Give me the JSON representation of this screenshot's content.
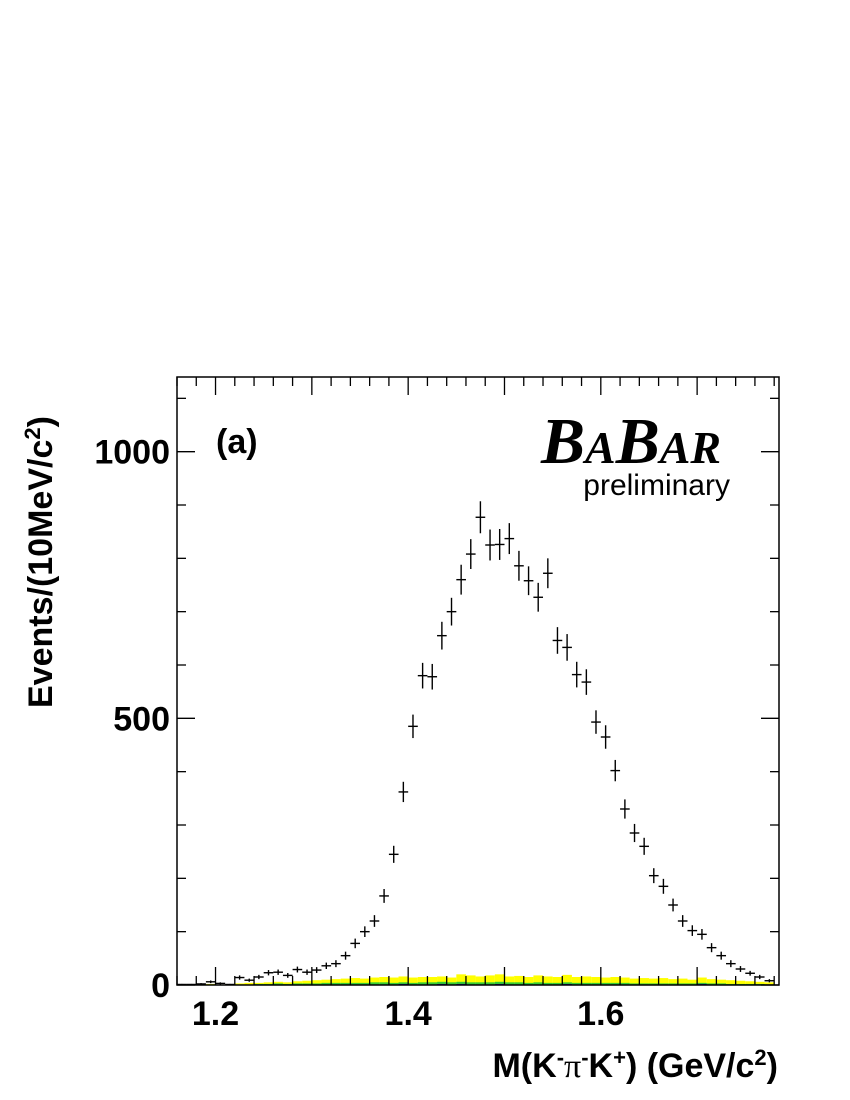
{
  "logo": {
    "big_b1": "B",
    "small_a1": "A",
    "big_b2": "B",
    "small_ar": "AR",
    "subtitle": "preliminary"
  },
  "panel_label": "(a)",
  "colors": {
    "data": "#000000",
    "bkg_yellow": "#ffff00",
    "bkg_green": "#33cc33",
    "bkg_blue": "#1a1aa0"
  },
  "chart_data": {
    "type": "scatter",
    "xlabel": {
      "main": "M(K",
      "sup1": "-",
      "pi": "π",
      "sup2": "-",
      "k": "K",
      "sup3": "+",
      "close": ") (GeV/c",
      "sup4": "2",
      "end": ")"
    },
    "ylabel": {
      "main": "Events/(10MeV/c",
      "sup": "2",
      "end": ")"
    },
    "xlim": [
      1.16,
      1.785
    ],
    "ylim": [
      0,
      1140
    ],
    "x_ticks": [
      1.2,
      1.4,
      1.6
    ],
    "x_tick_labels": [
      "1.2",
      "1.4",
      "1.6"
    ],
    "y_ticks": [
      0,
      500,
      1000
    ],
    "y_tick_labels": [
      "0",
      "500",
      "1000"
    ],
    "bin_width": 0.01,
    "series": [
      {
        "role": "data-points-with-errors",
        "x": [
          1.165,
          1.175,
          1.185,
          1.195,
          1.205,
          1.215,
          1.225,
          1.235,
          1.245,
          1.255,
          1.265,
          1.275,
          1.285,
          1.295,
          1.305,
          1.315,
          1.325,
          1.335,
          1.345,
          1.355,
          1.365,
          1.375,
          1.385,
          1.395,
          1.405,
          1.415,
          1.425,
          1.435,
          1.445,
          1.455,
          1.465,
          1.475,
          1.485,
          1.495,
          1.505,
          1.515,
          1.525,
          1.535,
          1.545,
          1.555,
          1.565,
          1.575,
          1.585,
          1.595,
          1.605,
          1.615,
          1.625,
          1.635,
          1.645,
          1.655,
          1.665,
          1.675,
          1.685,
          1.695,
          1.705,
          1.715,
          1.725,
          1.735,
          1.745,
          1.755,
          1.765,
          1.775
        ],
        "y": [
          1,
          1,
          2,
          6,
          3,
          1,
          14,
          9,
          15,
          23,
          24,
          18,
          29,
          24,
          28,
          36,
          40,
          55,
          78,
          100,
          120,
          167,
          245,
          362,
          485,
          580,
          578,
          655,
          700,
          760,
          808,
          877,
          825,
          826,
          837,
          786,
          758,
          727,
          772,
          646,
          633,
          582,
          568,
          493,
          465,
          402,
          330,
          285,
          260,
          205,
          185,
          150,
          120,
          102,
          95,
          70,
          55,
          40,
          30,
          22,
          15,
          8
        ],
        "yerr": [
          1,
          1,
          1.5,
          2.5,
          2,
          1,
          4,
          3,
          4,
          5,
          5,
          4.5,
          5.5,
          5,
          5.5,
          6,
          6.5,
          7.5,
          9,
          10,
          11,
          13,
          16,
          19,
          22,
          24,
          24,
          26,
          26,
          28,
          28,
          30,
          29,
          29,
          29,
          28,
          27,
          27,
          28,
          25,
          25,
          24,
          24,
          22,
          22,
          20,
          18,
          17,
          16,
          14,
          14,
          12,
          11,
          10,
          10,
          8.5,
          7.5,
          6.5,
          5.5,
          4.5,
          4,
          3
        ]
      },
      {
        "role": "background-yellow",
        "y": [
          1,
          1,
          1,
          2,
          1,
          1,
          3,
          4,
          4,
          5,
          6,
          5,
          7,
          8,
          9,
          10,
          11,
          12,
          13,
          12,
          14,
          15,
          14,
          16,
          14,
          15,
          15,
          16,
          14,
          20,
          18,
          16,
          18,
          20,
          16,
          17,
          15,
          18,
          16,
          15,
          19,
          15,
          16,
          15,
          14,
          15,
          14,
          12,
          13,
          12,
          13,
          11,
          12,
          10,
          14,
          11,
          10,
          9,
          8,
          7,
          6,
          5
        ]
      },
      {
        "role": "background-green",
        "y": [
          0,
          0,
          0,
          1,
          0,
          0,
          1,
          1,
          2,
          2,
          3,
          2,
          3,
          3,
          3,
          4,
          4,
          4,
          4,
          4,
          5,
          5,
          4,
          5,
          4,
          5,
          5,
          6,
          5,
          6,
          5,
          5,
          5,
          6,
          5,
          5,
          4,
          5,
          4,
          4,
          5,
          4,
          4,
          4,
          4,
          4,
          4,
          3,
          3,
          3,
          3,
          3,
          3,
          3,
          4,
          3,
          3,
          2,
          2,
          2,
          2,
          1
        ]
      },
      {
        "role": "background-blue",
        "y": [
          0,
          0,
          0,
          0,
          0,
          0,
          0,
          0,
          1,
          1,
          1,
          1,
          1,
          1,
          1,
          1,
          1,
          1,
          1,
          1,
          1,
          1,
          1,
          2,
          1,
          1,
          1,
          2,
          1,
          2,
          1,
          1,
          1,
          2,
          1,
          1,
          1,
          1,
          1,
          1,
          2,
          1,
          1,
          1,
          1,
          1,
          1,
          1,
          1,
          1,
          1,
          1,
          1,
          1,
          2,
          1,
          1,
          1,
          1,
          1,
          1,
          1
        ]
      }
    ]
  }
}
